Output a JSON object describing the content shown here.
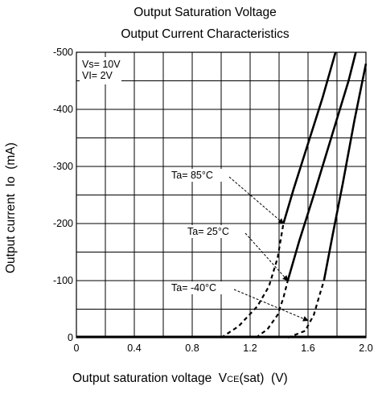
{
  "chart_data": {
    "type": "line",
    "title": "Output Saturation Voltage",
    "subtitle": "Output Current Characteristics",
    "ylabel": "Output current  Io  (mA)",
    "xlabel_prefix": "Output saturation voltage  V",
    "xlabel_sub": "CE",
    "xlabel_suffix": "(sat)  (V)",
    "xlim": [
      0,
      2.0
    ],
    "ylim": [
      0,
      -500
    ],
    "x_tick_labels": [
      "0",
      "0.4",
      "0.8",
      "1.2",
      "1.6",
      "2.0"
    ],
    "x_ticks": [
      0,
      0.4,
      0.8,
      1.2,
      1.6,
      2.0
    ],
    "y_tick_labels": [
      "0",
      "-100",
      "-200",
      "-300",
      "-400",
      "-500"
    ],
    "y_ticks": [
      0,
      -100,
      -200,
      -300,
      -400,
      -500
    ],
    "grid": true,
    "conditions": [
      "Vs=  10V",
      "VI=  2V"
    ],
    "series": [
      {
        "name": "Ta=  85°C",
        "dashed": [
          [
            1.0,
            0
          ],
          [
            1.12,
            -20
          ],
          [
            1.25,
            -55
          ],
          [
            1.33,
            -90
          ],
          [
            1.39,
            -140
          ],
          [
            1.43,
            -200
          ]
        ],
        "solid": [
          [
            1.43,
            -200
          ],
          [
            1.5,
            -260
          ],
          [
            1.6,
            -340
          ],
          [
            1.7,
            -420
          ],
          [
            1.79,
            -500
          ]
        ]
      },
      {
        "name": "Ta=  25°C",
        "dashed": [
          [
            1.24,
            0
          ],
          [
            1.32,
            -15
          ],
          [
            1.39,
            -40
          ],
          [
            1.43,
            -70
          ],
          [
            1.46,
            -100
          ]
        ],
        "solid": [
          [
            1.46,
            -100
          ],
          [
            1.54,
            -170
          ],
          [
            1.64,
            -250
          ],
          [
            1.76,
            -350
          ],
          [
            1.88,
            -450
          ],
          [
            1.93,
            -500
          ]
        ]
      },
      {
        "name": "Ta=  -40°C",
        "dashed": [
          [
            1.46,
            0
          ],
          [
            1.58,
            -12
          ],
          [
            1.64,
            -40
          ],
          [
            1.68,
            -75
          ],
          [
            1.71,
            -100
          ]
        ],
        "solid": [
          [
            1.71,
            -100
          ],
          [
            1.77,
            -180
          ],
          [
            1.84,
            -270
          ],
          [
            1.92,
            -380
          ],
          [
            2.0,
            -480
          ]
        ]
      }
    ],
    "annotations": [
      {
        "text": "Ta=  85°C",
        "points_to": [
          1.43,
          -200
        ]
      },
      {
        "text": "Ta=  25°C",
        "points_to": [
          1.46,
          -100
        ]
      },
      {
        "text": "Ta=  -40°C",
        "points_to": [
          1.6,
          -30
        ]
      }
    ]
  }
}
